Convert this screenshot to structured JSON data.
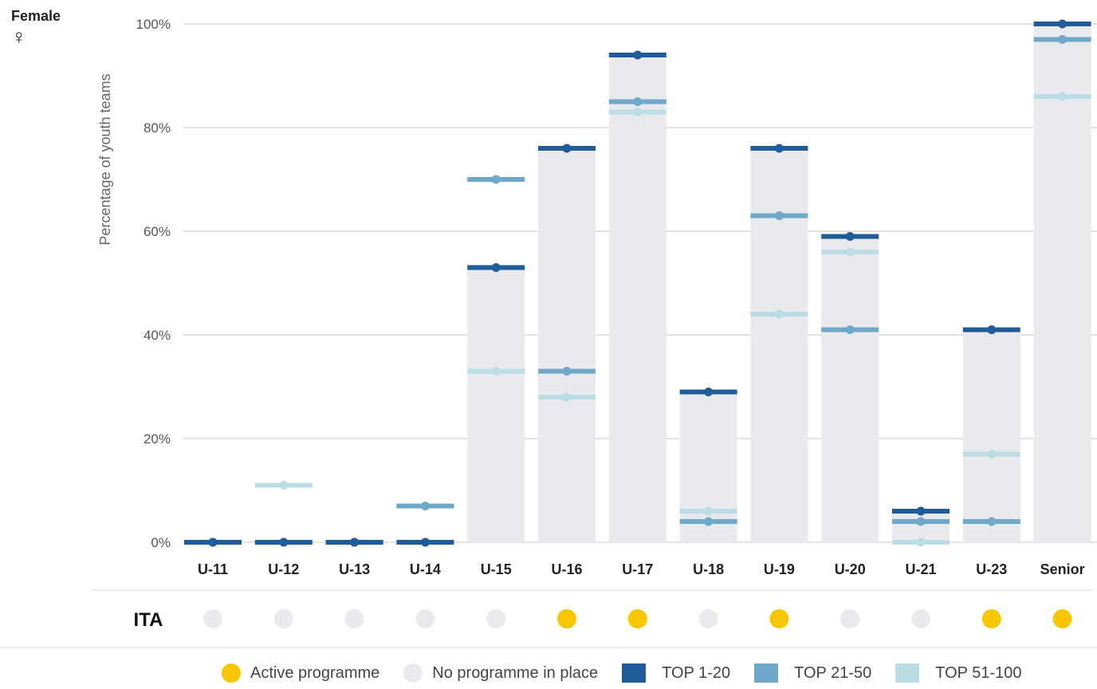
{
  "gender": {
    "label": "Female",
    "symbol": "♀"
  },
  "chart_data": {
    "type": "bar",
    "ylabel": "Percentage of youth teams",
    "ylim": [
      0,
      100
    ],
    "yticks": [
      "0%",
      "20%",
      "40%",
      "60%",
      "80%",
      "100%"
    ],
    "ytick_values": [
      0,
      20,
      40,
      60,
      80,
      100
    ],
    "grid": true,
    "categories": [
      "U-11",
      "U-12",
      "U-13",
      "U-14",
      "U-15",
      "U-16",
      "U-17",
      "U-18",
      "U-19",
      "U-20",
      "U-21",
      "U-23",
      "Senior"
    ],
    "bar_values": [
      0,
      0,
      0,
      0,
      53,
      76,
      94,
      29,
      76,
      59,
      6,
      41,
      100
    ],
    "series": [
      {
        "name": "TOP 1-20",
        "color": "#1f5c99",
        "values": [
          0,
          0,
          0,
          0,
          53,
          76,
          94,
          29,
          76,
          59,
          6,
          41,
          100
        ]
      },
      {
        "name": "TOP 21-50",
        "color": "#6fa8c8",
        "values": [
          0,
          0,
          0,
          7,
          70,
          33,
          85,
          4,
          63,
          41,
          4,
          4,
          97
        ]
      },
      {
        "name": "TOP 51-100",
        "color": "#bcdde6",
        "values": [
          0,
          11,
          0,
          0,
          33,
          28,
          83,
          6,
          44,
          56,
          0,
          17,
          86
        ]
      }
    ],
    "country": {
      "code": "ITA",
      "programme": [
        "none",
        "none",
        "none",
        "none",
        "none",
        "active",
        "active",
        "none",
        "active",
        "none",
        "none",
        "active",
        "active"
      ]
    },
    "colors": {
      "bar": "#e8eaed",
      "grid": "#d9d9d9",
      "active": "#f7c600",
      "none": "#e8eaed"
    },
    "legend": [
      {
        "kind": "dot",
        "label": "Active programme",
        "color": "#f7c600"
      },
      {
        "kind": "dot",
        "label": "No programme in place",
        "color": "#e8eaed"
      },
      {
        "kind": "square",
        "label": "TOP 1-20",
        "color": "#1f5c99"
      },
      {
        "kind": "square",
        "label": "TOP 21-50",
        "color": "#6fa8c8"
      },
      {
        "kind": "square",
        "label": "TOP 51-100",
        "color": "#bcdde6"
      }
    ]
  }
}
